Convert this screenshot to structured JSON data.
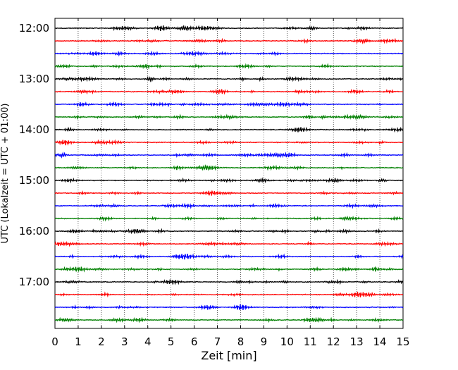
{
  "chart_data": {
    "type": "line",
    "chart_style": "helicorder",
    "xlabel": "Zeit  [min]",
    "ylabel": "UTC (Lokalzeit = UTC + 01:00)",
    "xlim": [
      0,
      15
    ],
    "x_ticks": [
      0,
      1,
      2,
      3,
      4,
      5,
      6,
      7,
      8,
      9,
      10,
      11,
      12,
      13,
      14,
      15
    ],
    "x_tick_labels": [
      "0",
      "1",
      "2",
      "3",
      "4",
      "5",
      "6",
      "7",
      "8",
      "9",
      "10",
      "11",
      "12",
      "13",
      "14",
      "15"
    ],
    "grid": "vertical dotted lines at each minute",
    "minutes_per_line": 15,
    "trace_count": 24,
    "hour_labels": [
      {
        "label": "12:00",
        "trace": 0
      },
      {
        "label": "13:00",
        "trace": 4
      },
      {
        "label": "14:00",
        "trace": 8
      },
      {
        "label": "15:00",
        "trace": 12
      },
      {
        "label": "16:00",
        "trace": 16
      },
      {
        "label": "17:00",
        "trace": 20
      }
    ],
    "trace_colors": [
      "#000000",
      "#ff0000",
      "#0000ff",
      "#008000"
    ]
  }
}
